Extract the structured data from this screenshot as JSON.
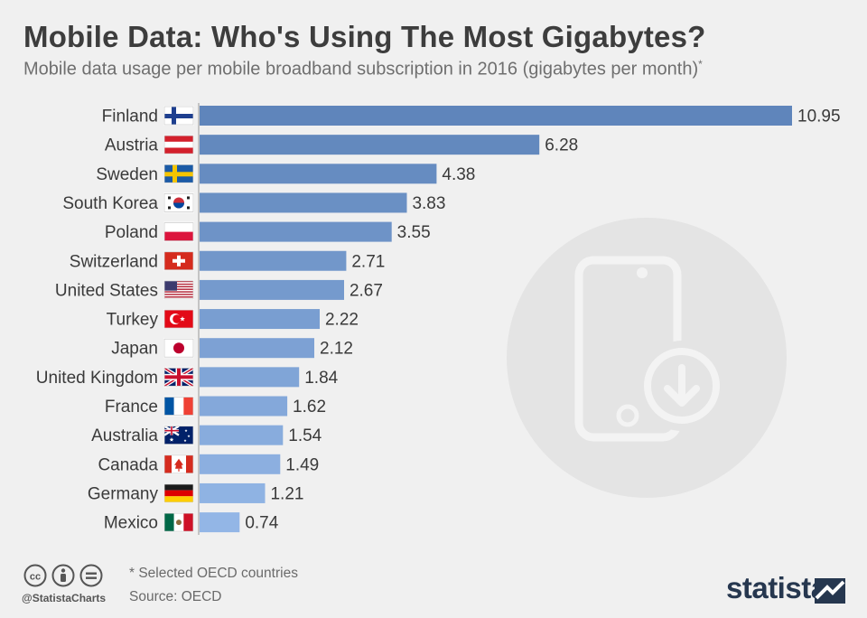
{
  "header": {
    "title": "Mobile Data: Who's Using The Most Gigabytes?",
    "subtitle": "Mobile data usage per mobile broadband subscription in 2016 (gigabytes per month)",
    "subtitle_mark": "*"
  },
  "chart_data": {
    "type": "bar",
    "orientation": "horizontal",
    "title": "Mobile Data: Who's Using The Most Gigabytes?",
    "subtitle": "Mobile data usage per mobile broadband subscription in 2016 (gigabytes per month)",
    "categories": [
      "Finland",
      "Austria",
      "Sweden",
      "South Korea",
      "Poland",
      "Switzerland",
      "United States",
      "Turkey",
      "Japan",
      "United Kingdom",
      "France",
      "Australia",
      "Canada",
      "Germany",
      "Mexico"
    ],
    "values": [
      10.95,
      6.28,
      4.38,
      3.83,
      3.55,
      2.71,
      2.67,
      2.22,
      2.12,
      1.84,
      1.62,
      1.54,
      1.49,
      1.21,
      0.74
    ],
    "value_labels": [
      "10.95",
      "6.28",
      "4.38",
      "3.83",
      "3.55",
      "2.71",
      "2.67",
      "2.22",
      "2.12",
      "1.84",
      "1.62",
      "1.54",
      "1.49",
      "1.21",
      "0.74"
    ],
    "flag_icons": [
      "finland-flag-icon",
      "austria-flag-icon",
      "sweden-flag-icon",
      "south-korea-flag-icon",
      "poland-flag-icon",
      "switzerland-flag-icon",
      "united-states-flag-icon",
      "turkey-flag-icon",
      "japan-flag-icon",
      "united-kingdom-flag-icon",
      "france-flag-icon",
      "australia-flag-icon",
      "canada-flag-icon",
      "germany-flag-icon",
      "mexico-flag-icon"
    ],
    "xlim": [
      0,
      10.95
    ],
    "grid": false,
    "legend": "none",
    "bar_color_top": "#5f85bb",
    "bar_color_bottom": "#93b6e6"
  },
  "footer": {
    "note": "* Selected OECD countries",
    "source": "Source: OECD",
    "handle": "@StatistaCharts",
    "license_icons": [
      "cc-icon",
      "by-icon",
      "nd-icon"
    ]
  },
  "brand": {
    "name": "statista",
    "color": "#26374f"
  },
  "decoration": {
    "icon": "phone-download-icon"
  }
}
